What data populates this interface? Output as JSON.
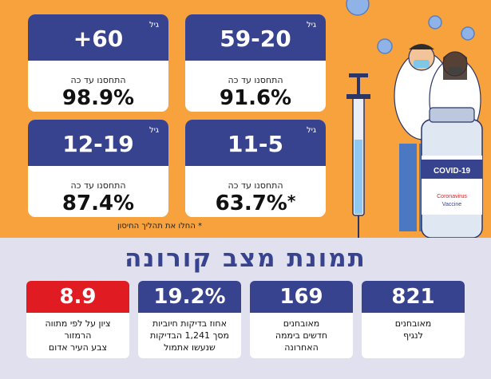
{
  "cards": [
    {
      "unit": "גיל",
      "age": "+60",
      "vaccinated_label": "התחסנו עד כה",
      "percent": "98.9%"
    },
    {
      "unit": "גיל",
      "age": "59-20",
      "vaccinated_label": "התחסנו עד כה",
      "percent": "91.6%"
    },
    {
      "unit": "גיל",
      "age": "12-19",
      "vaccinated_label": "התחסנו עד כה",
      "percent": "87.4%"
    },
    {
      "unit": "גיל",
      "age": "11-5",
      "vaccinated_label": "התחסנו עד כה",
      "percent": "63.7%",
      "asterisk": "*"
    }
  ],
  "footnote": "* החלו את תהליך החיסון",
  "section_title": "תמונת מצב קורונה",
  "stats": [
    {
      "value": "8.9",
      "description": "ציון על לפי מתווה\nהרמזור\nצבע העיר אדום",
      "color": "#e11b22"
    },
    {
      "value": "19.2%",
      "description": "אחוז בדיקות חיוביות\nמסך 1,241 הבדיקות\nשנעשו אתמול",
      "color": "#38438f"
    },
    {
      "value": "169",
      "description": "מאובחנים\nחדשים ביממה\nהאחרונה",
      "color": "#38438f"
    },
    {
      "value": "821",
      "description": "מאובחנים\nלנגיף",
      "color": "#38438f"
    }
  ],
  "illustration": {
    "vial_label": "COVID-19",
    "vial_sub1": "Coronavirus",
    "vial_sub2": "Vaccine"
  },
  "colors": {
    "background_top": "#f7a23c",
    "background_bottom": "#e1e0ef",
    "primary": "#38438f",
    "alert": "#e11b22"
  }
}
